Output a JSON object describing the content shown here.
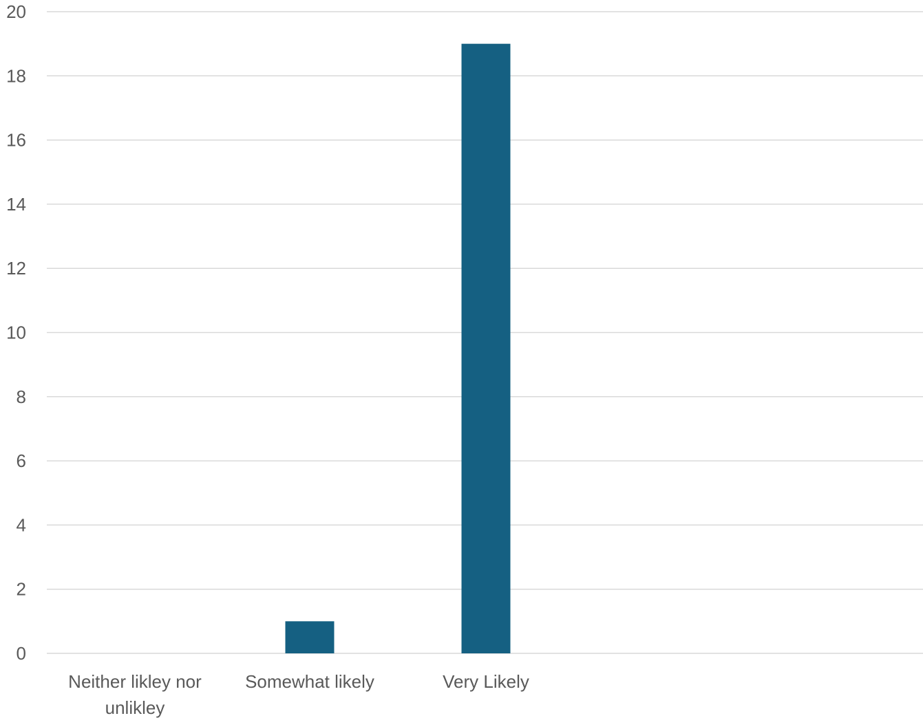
{
  "chart_data": {
    "type": "bar",
    "categories": [
      [
        "Neither likley nor",
        "unlikley"
      ],
      [
        "Somewhat likely"
      ],
      [
        "Very Likely"
      ]
    ],
    "values": [
      0,
      1,
      19
    ],
    "ylim": [
      0,
      20
    ],
    "yticks": [
      0,
      2,
      4,
      6,
      8,
      10,
      12,
      14,
      16,
      18,
      20
    ],
    "grid": true,
    "legend": "none",
    "bar_color": "#156082",
    "title": "",
    "xlabel": "",
    "ylabel": ""
  }
}
